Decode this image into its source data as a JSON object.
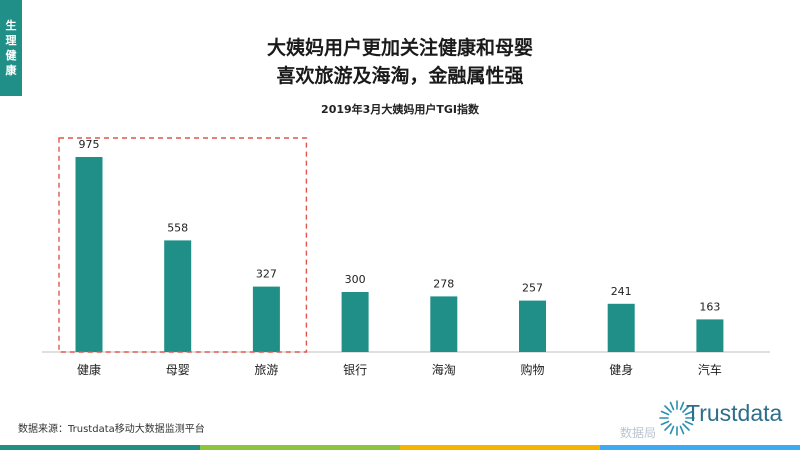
{
  "side_tab": "生理健康",
  "headline": {
    "line1": "大姨妈用户更加关注健康和母婴",
    "line2": "喜欢旅游及海淘，金融属性强"
  },
  "chart_title": "2019年3月大姨妈用户TGI指数",
  "source": "数据来源：Trustdata移动大数据监测平台",
  "watermark": "数据局",
  "logo_text": "Trustdata",
  "colors": {
    "bar": "#1f8f87",
    "highlight_box": "#e0554d",
    "side_tab": "#1f8f87",
    "footer": [
      "#1f8f87",
      "#8cc63f",
      "#f4b400",
      "#3fa9f5"
    ]
  },
  "chart_data": {
    "type": "bar",
    "title": "2019年3月大姨妈用户TGI指数",
    "categories": [
      "健康",
      "母婴",
      "旅游",
      "银行",
      "海淘",
      "购物",
      "健身",
      "汽车"
    ],
    "values": [
      975,
      558,
      327,
      300,
      278,
      257,
      241,
      163
    ],
    "ylim": [
      0,
      1000
    ],
    "grid": false,
    "data_labels": true,
    "highlight": {
      "categories": [
        "健康",
        "母婴",
        "旅游"
      ],
      "style": "dashed-box"
    }
  }
}
